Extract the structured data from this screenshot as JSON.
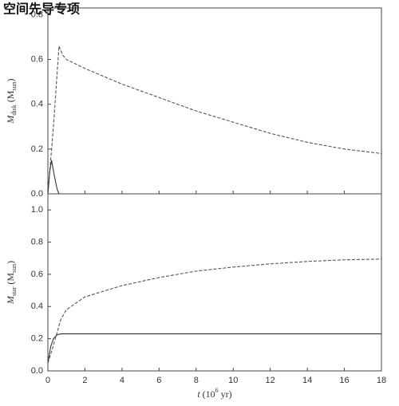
{
  "watermark": "空间先导专项",
  "chart_data": [
    {
      "type": "line",
      "ylabel": [
        "M",
        "disk",
        " (M",
        "sun",
        ")"
      ],
      "xlim": [
        0,
        18
      ],
      "xticks": [
        0,
        2,
        4,
        6,
        8,
        10,
        12,
        14,
        16,
        18
      ],
      "ylim": [
        0,
        0.83
      ],
      "yticks": [
        {
          "value": 0,
          "label": "0.0"
        },
        0.2,
        0.4,
        0.6,
        {
          "value": 0.8,
          "label": "0.8"
        }
      ],
      "series": [
        {
          "color": "#555555",
          "dashed": true,
          "x": [
            0,
            0.3,
            0.6,
            0.8,
            1,
            2,
            4,
            6,
            8,
            10,
            12,
            14,
            16,
            18
          ],
          "values": [
            0,
            0.3,
            0.66,
            0.62,
            0.6,
            0.56,
            0.49,
            0.43,
            0.37,
            0.32,
            0.27,
            0.23,
            0.2,
            0.18
          ]
        },
        {
          "color": "#333333",
          "dashed": false,
          "x": [
            0,
            0.1,
            0.2,
            0.35,
            0.5,
            0.6
          ],
          "values": [
            0,
            0.1,
            0.15,
            0.08,
            0.02,
            0
          ]
        }
      ]
    },
    {
      "type": "line",
      "xlabel": [
        "t",
        " (10",
        "6",
        " yr)"
      ],
      "ylabel": [
        "M",
        "star",
        " (M",
        "sun",
        ")"
      ],
      "xlim": [
        0,
        18
      ],
      "xticks": [
        0,
        2,
        4,
        6,
        8,
        10,
        12,
        14,
        16,
        18
      ],
      "ylim": [
        0,
        1.1
      ],
      "yticks": [
        {
          "value": 0,
          "label": "0.0"
        },
        0.2,
        0.4,
        0.6,
        0.8,
        {
          "value": 1,
          "label": "1.0"
        }
      ],
      "series": [
        {
          "color": "#555555",
          "dashed": true,
          "x": [
            0,
            0.2,
            0.4,
            0.7,
            1,
            1.5,
            2,
            4,
            6,
            8,
            10,
            12,
            14,
            16,
            18
          ],
          "values": [
            0.05,
            0.12,
            0.2,
            0.32,
            0.38,
            0.42,
            0.46,
            0.53,
            0.58,
            0.62,
            0.645,
            0.665,
            0.68,
            0.69,
            0.695
          ]
        },
        {
          "color": "#333333",
          "dashed": false,
          "x": [
            0,
            0.15,
            0.3,
            0.5,
            0.7,
            18
          ],
          "values": [
            0.05,
            0.15,
            0.2,
            0.225,
            0.23,
            0.23
          ]
        }
      ]
    }
  ]
}
